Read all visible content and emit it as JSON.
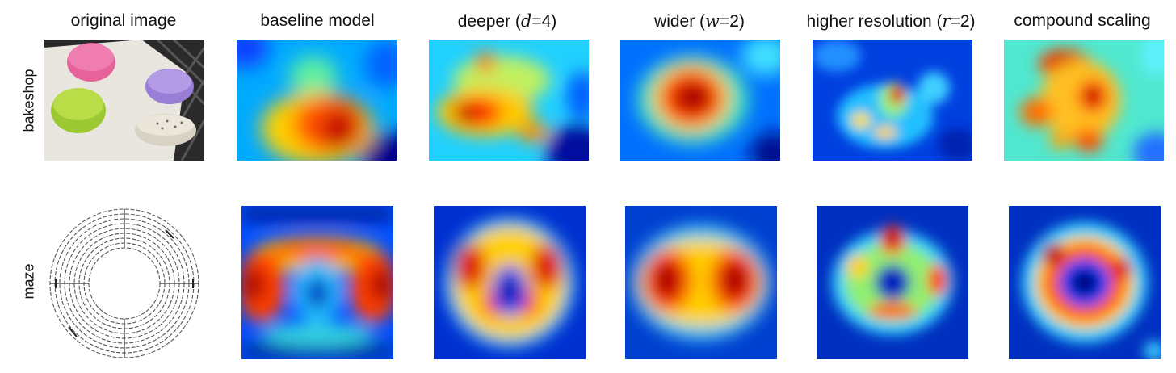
{
  "columns": [
    {
      "id": "original",
      "label": "original image"
    },
    {
      "id": "baseline",
      "label": "baseline model"
    },
    {
      "id": "deeper",
      "label": "deeper (",
      "var": "d",
      "suffix": "=4)"
    },
    {
      "id": "wider",
      "label": "wider (",
      "var": "w",
      "suffix": "=2)"
    },
    {
      "id": "higher",
      "label": "higher resolution (",
      "var": "r",
      "suffix": "=2)"
    },
    {
      "id": "compound",
      "label": "compound scaling"
    }
  ],
  "rows": [
    {
      "id": "bakeshop",
      "label": "bakeshop"
    },
    {
      "id": "maze",
      "label": "maze"
    }
  ],
  "colors": {
    "jet_low": "#00007f",
    "jet_blue": "#0050ff",
    "jet_cyan": "#20e0ff",
    "jet_yellow": "#ffe020",
    "jet_red": "#e01000",
    "jet_high": "#7f0000"
  }
}
